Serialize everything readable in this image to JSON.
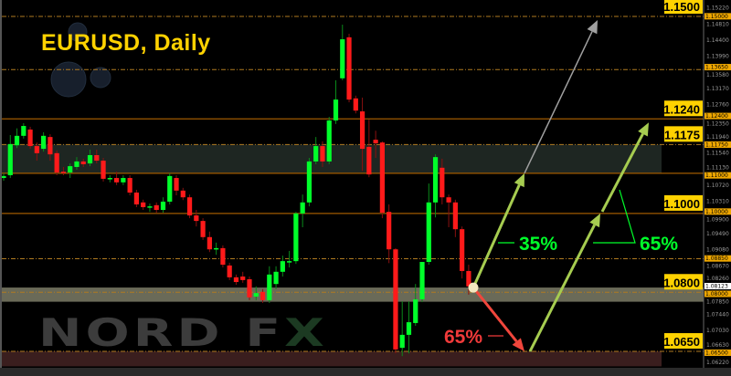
{
  "chart_data": {
    "type": "candlestick",
    "title": "EURUSD, Daily",
    "ylim": [
      1.0622,
      1.1522
    ],
    "grid": false,
    "colors": {
      "up": "#00ff2a",
      "down": "#ff1a1a",
      "background": "#000000",
      "level": "#ffd200",
      "arrow_up": "#a6cc50",
      "arrow_down": "#f0463c",
      "arrow_grey": "#a0a0a0"
    },
    "candles_ohlc": [
      [
        1.109,
        1.1102,
        1.1083,
        1.1095
      ],
      [
        1.1097,
        1.1199,
        1.109,
        1.1176
      ],
      [
        1.1173,
        1.1216,
        1.1166,
        1.1197
      ],
      [
        1.1197,
        1.1229,
        1.119,
        1.1222
      ],
      [
        1.1213,
        1.122,
        1.1164,
        1.1171
      ],
      [
        1.1171,
        1.118,
        1.1134,
        1.1153
      ],
      [
        1.1164,
        1.1206,
        1.1157,
        1.1197
      ],
      [
        1.1194,
        1.1201,
        1.1134,
        1.115
      ],
      [
        1.1153,
        1.116,
        1.1097,
        1.1104
      ],
      [
        1.1106,
        1.1118,
        1.1097,
        1.1104
      ],
      [
        1.1104,
        1.1127,
        1.109,
        1.112
      ],
      [
        1.1118,
        1.1143,
        1.1111,
        1.1132
      ],
      [
        1.1132,
        1.1139,
        1.1118,
        1.1125
      ],
      [
        1.1127,
        1.1162,
        1.112,
        1.1148
      ],
      [
        1.1148,
        1.1162,
        1.1127,
        1.1134
      ],
      [
        1.1134,
        1.1141,
        1.1081,
        1.1088
      ],
      [
        1.1088,
        1.1097,
        1.1079,
        1.109
      ],
      [
        1.109,
        1.1106,
        1.1072,
        1.1079
      ],
      [
        1.1079,
        1.1097,
        1.1072,
        1.109
      ],
      [
        1.109,
        1.1097,
        1.1046,
        1.1053
      ],
      [
        1.1053,
        1.106,
        1.1016,
        1.1023
      ],
      [
        1.1028,
        1.1035,
        1.1009,
        1.1016
      ],
      [
        1.1016,
        1.1025,
        1.1004,
        1.1018
      ],
      [
        1.1021,
        1.1028,
        1.1002,
        1.1009
      ],
      [
        1.1009,
        1.1041,
        1.1002,
        1.103
      ],
      [
        1.103,
        1.1102,
        1.1023,
        1.1095
      ],
      [
        1.109,
        1.1097,
        1.1046,
        1.1058
      ],
      [
        1.1058,
        1.1065,
        1.1034,
        1.1041
      ],
      [
        1.1041,
        1.1048,
        1.0988,
        1.0995
      ],
      [
        1.0995,
        1.1009,
        1.0967,
        1.0981
      ],
      [
        1.0981,
        1.0988,
        1.0933,
        1.094
      ],
      [
        1.094,
        1.0954,
        1.0902,
        1.0909
      ],
      [
        1.0909,
        1.0926,
        1.0895,
        1.0912
      ],
      [
        1.0912,
        1.0919,
        1.0863,
        1.087
      ],
      [
        1.0868,
        1.0875,
        1.0831,
        1.0838
      ],
      [
        1.0838,
        1.0845,
        1.0819,
        1.0826
      ],
      [
        1.084,
        1.0852,
        1.0824,
        1.0831
      ],
      [
        1.0833,
        1.084,
        1.078,
        1.0787
      ],
      [
        1.0789,
        1.0815,
        1.078,
        1.0798
      ],
      [
        1.0801,
        1.0808,
        1.0773,
        1.078
      ],
      [
        1.078,
        1.0866,
        1.0773,
        1.0845
      ],
      [
        1.0821,
        1.0866,
        1.0808,
        1.0852
      ],
      [
        1.0852,
        1.0893,
        1.084,
        1.0879
      ],
      [
        1.0877,
        1.0905,
        1.0863,
        1.0879
      ],
      [
        1.0879,
        1.1004,
        1.0872,
        1.1
      ],
      [
        1.1,
        1.1048,
        1.0965,
        1.1028
      ],
      [
        1.1028,
        1.1141,
        1.1018,
        1.1132
      ],
      [
        1.1132,
        1.1194,
        1.1125,
        1.1171
      ],
      [
        1.1171,
        1.1183,
        1.1118,
        1.1132
      ],
      [
        1.1132,
        1.1245,
        1.1125,
        1.1236
      ],
      [
        1.1236,
        1.1338,
        1.1227,
        1.1289
      ],
      [
        1.1343,
        1.1479,
        1.1338,
        1.1442
      ],
      [
        1.1447,
        1.1456,
        1.1282,
        1.1289
      ],
      [
        1.1292,
        1.1299,
        1.1254,
        1.1261
      ],
      [
        1.1259,
        1.1294,
        1.1108,
        1.1164
      ],
      [
        1.1169,
        1.1238,
        1.1092,
        1.1099
      ],
      [
        1.1187,
        1.121,
        1.1141,
        1.1178
      ],
      [
        1.118,
        1.1183,
        1.0988,
        1.1002
      ],
      [
        1.1004,
        1.1023,
        1.0874,
        1.0909
      ],
      [
        1.0909,
        1.0912,
        1.0645,
        1.0655
      ],
      [
        1.0659,
        1.0777,
        1.0638,
        1.0692
      ],
      [
        1.0692,
        1.0777,
        1.0645,
        1.0724
      ],
      [
        1.0722,
        1.0821,
        1.0715,
        1.0782
      ],
      [
        1.0782,
        1.0877,
        1.0775,
        1.0877
      ],
      [
        1.0877,
        1.1076,
        1.087,
        1.1028
      ],
      [
        1.1028,
        1.115,
        1.099,
        1.1143
      ],
      [
        1.1116,
        1.1139,
        1.1023,
        1.1041
      ],
      [
        1.1041,
        1.1048,
        1.0965,
        1.1028
      ],
      [
        1.1028,
        1.1035,
        1.094,
        1.096
      ],
      [
        1.096,
        1.0967,
        1.0835,
        1.0854
      ],
      [
        1.0854,
        1.087,
        1.0794,
        1.0815
      ]
    ],
    "zones": [
      {
        "from": 1.1102,
        "to": 1.1175,
        "color": "#1e2622"
      },
      {
        "from": 1.0776,
        "to": 1.0812,
        "color": "#6a6a58"
      },
      {
        "from": 1.0612,
        "to": 1.065,
        "color": "#3a1e1e"
      }
    ],
    "solid_levels": [
      1.124,
      1.1102,
      1.1
    ],
    "dashed_levels": [
      1.15,
      1.1365,
      1.1175,
      1.0885,
      1.08,
      1.065
    ],
    "level_labels": [
      "1.1500",
      "1.1240",
      "1.1175",
      "1.1000",
      "1.0800",
      "1.0650"
    ],
    "axis_ticks": [
      "1.15220",
      "1.14810",
      "1.14400",
      "1.13990",
      "1.13580",
      "1.13170",
      "1.12760",
      "1.12350",
      "1.11940",
      "1.11540",
      "1.11130",
      "1.10720",
      "1.10310",
      "1.09900",
      "1.09490",
      "1.09080",
      "1.08670",
      "1.08260",
      "1.07850",
      "1.07440",
      "1.07030",
      "1.06630",
      "1.06220"
    ],
    "axis_tags": [
      "1.15000",
      "1.13650",
      "1.12400",
      "1.11750",
      "1.11000",
      "1.10000",
      "1.08850",
      "1.08000",
      "1.06500"
    ],
    "current_price": "1.08123",
    "annotations": {
      "up_first_pct": "35%",
      "up_second_pct": "65%",
      "down_pct": "65%",
      "pivot_price": 1.0812,
      "up_first_target": 1.1102,
      "up_extended_target": 1.15,
      "down_target": 1.065,
      "up_second_mid": 1.1,
      "up_second_target": 1.124
    }
  },
  "watermark": {
    "text_main": "NORD F",
    "text_x": "X"
  }
}
